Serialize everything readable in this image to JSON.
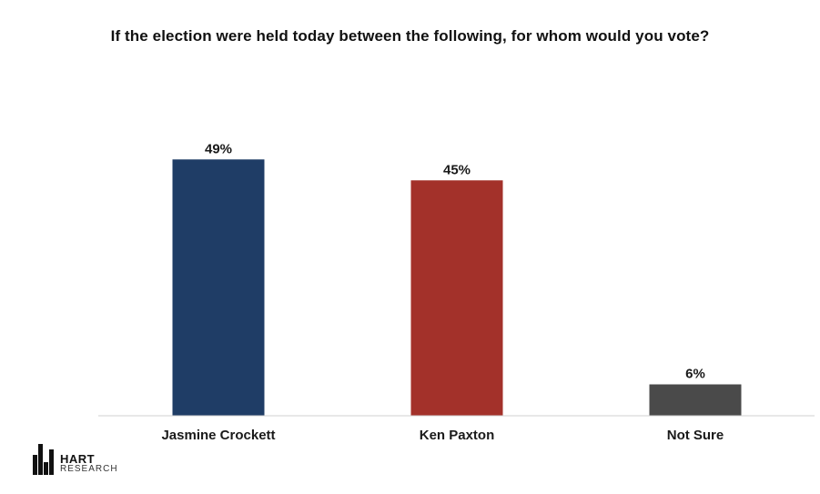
{
  "chart_data": {
    "type": "bar",
    "title": "If the election were held today between the following, for whom would you vote?",
    "categories": [
      "Jasmine Crockett",
      "Ken Paxton",
      "Not Sure"
    ],
    "values": [
      49,
      45,
      6
    ],
    "value_labels": [
      "49%",
      "45%",
      "6%"
    ],
    "colors": [
      "#1f3d66",
      "#a3312a",
      "#4a4a4a"
    ],
    "ylim": [
      0,
      52
    ],
    "grid": false,
    "legend": "none"
  },
  "logo": {
    "brand": "HART",
    "sub": "RESEARCH"
  },
  "icons": {
    "logo_mark": "hart-research-bars-icon"
  }
}
